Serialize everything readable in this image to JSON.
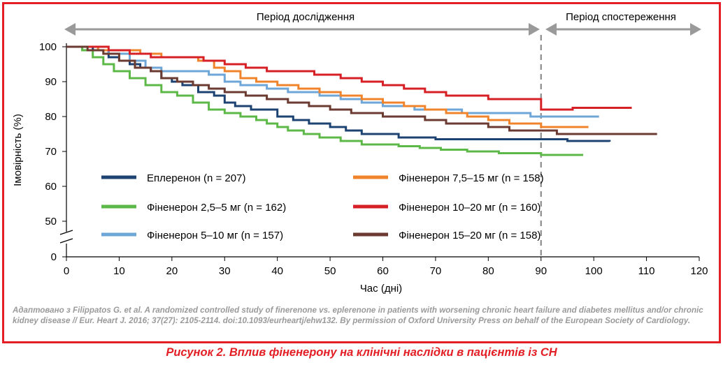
{
  "chart_data": {
    "type": "line",
    "xlabel": "Час (дні)",
    "ylabel": "Імовірність (%)",
    "x_ticks": [
      0,
      10,
      20,
      30,
      40,
      50,
      60,
      70,
      80,
      90,
      100,
      110,
      120
    ],
    "y_ticks": [
      0,
      50,
      60,
      70,
      80,
      90,
      100
    ],
    "y_tick_labels": [
      "0",
      "50",
      "60",
      "70",
      "80",
      "90",
      "100"
    ],
    "xlim": [
      0,
      120
    ],
    "ylim_upper_segment": [
      48,
      101
    ],
    "axis_break": true,
    "grid": false,
    "period_study_label": "Період дослідження",
    "period_followup_label": "Період спостереження",
    "period_divider_day": 90,
    "legend_placement": "inside-bottom, two columns",
    "series": [
      {
        "name": "Еплеренон (n = 207)",
        "color": "#1d4373",
        "points": [
          [
            0,
            100
          ],
          [
            5,
            99
          ],
          [
            8,
            97
          ],
          [
            10,
            96
          ],
          [
            12,
            95
          ],
          [
            14,
            94
          ],
          [
            16,
            93
          ],
          [
            18,
            91
          ],
          [
            20,
            90
          ],
          [
            22,
            89
          ],
          [
            25,
            87
          ],
          [
            28,
            86
          ],
          [
            30,
            84
          ],
          [
            32,
            83
          ],
          [
            35,
            82
          ],
          [
            38,
            82
          ],
          [
            40,
            80
          ],
          [
            43,
            79
          ],
          [
            46,
            78
          ],
          [
            50,
            77
          ],
          [
            53,
            76
          ],
          [
            56,
            75
          ],
          [
            60,
            75
          ],
          [
            63,
            74
          ],
          [
            70,
            73.5
          ],
          [
            80,
            73.5
          ],
          [
            90,
            73.5
          ],
          [
            95,
            73
          ],
          [
            103,
            72.8
          ]
        ]
      },
      {
        "name": "Фіненерон 2,5–5 мг (n = 162)",
        "color": "#5db947",
        "points": [
          [
            0,
            100
          ],
          [
            3,
            99
          ],
          [
            5,
            97
          ],
          [
            7,
            95
          ],
          [
            9,
            93
          ],
          [
            12,
            91
          ],
          [
            15,
            89
          ],
          [
            18,
            87
          ],
          [
            21,
            86
          ],
          [
            24,
            84
          ],
          [
            27,
            82
          ],
          [
            30,
            81
          ],
          [
            33,
            80
          ],
          [
            36,
            79
          ],
          [
            38,
            78
          ],
          [
            40,
            77
          ],
          [
            42,
            76
          ],
          [
            45,
            75
          ],
          [
            48,
            74
          ],
          [
            52,
            73
          ],
          [
            56,
            72
          ],
          [
            60,
            72
          ],
          [
            63,
            71.5
          ],
          [
            67,
            71
          ],
          [
            71,
            70.5
          ],
          [
            76,
            70
          ],
          [
            82,
            69.5
          ],
          [
            90,
            69
          ],
          [
            98,
            69
          ]
        ]
      },
      {
        "name": "Фіненерон 5–10 мг (n = 157)",
        "color": "#6fa6d8",
        "points": [
          [
            0,
            100
          ],
          [
            4,
            100
          ],
          [
            6,
            99
          ],
          [
            8,
            98
          ],
          [
            12,
            96
          ],
          [
            15,
            94
          ],
          [
            18,
            93
          ],
          [
            24,
            93
          ],
          [
            27,
            92
          ],
          [
            30,
            90
          ],
          [
            33,
            89
          ],
          [
            38,
            88
          ],
          [
            42,
            87
          ],
          [
            48,
            86
          ],
          [
            52,
            85
          ],
          [
            56,
            84
          ],
          [
            60,
            83
          ],
          [
            63,
            83
          ],
          [
            66,
            82
          ],
          [
            70,
            82
          ],
          [
            75,
            81
          ],
          [
            80,
            81
          ],
          [
            84,
            81
          ],
          [
            88,
            80
          ],
          [
            90,
            80
          ],
          [
            100,
            80
          ],
          [
            101,
            80
          ]
        ]
      },
      {
        "name": "Фіненерон 7,5–15 мг (n = 158)",
        "color": "#f0842c",
        "points": [
          [
            0,
            100
          ],
          [
            4,
            100
          ],
          [
            6,
            99
          ],
          [
            10,
            99
          ],
          [
            14,
            98
          ],
          [
            18,
            97
          ],
          [
            22,
            97
          ],
          [
            25,
            96
          ],
          [
            28,
            94
          ],
          [
            30,
            93
          ],
          [
            33,
            91
          ],
          [
            36,
            90
          ],
          [
            40,
            89
          ],
          [
            44,
            88
          ],
          [
            48,
            87
          ],
          [
            52,
            86
          ],
          [
            56,
            85
          ],
          [
            60,
            84
          ],
          [
            64,
            83
          ],
          [
            68,
            82
          ],
          [
            72,
            81
          ],
          [
            76,
            80
          ],
          [
            80,
            79
          ],
          [
            84,
            78
          ],
          [
            88,
            78
          ],
          [
            90,
            77
          ],
          [
            95,
            77
          ],
          [
            99,
            77
          ]
        ]
      },
      {
        "name": "Фіненерон 10–20 мг (n = 160)",
        "color": "#d71f26",
        "points": [
          [
            0,
            100
          ],
          [
            5,
            100
          ],
          [
            8,
            99
          ],
          [
            12,
            98
          ],
          [
            16,
            97
          ],
          [
            20,
            97
          ],
          [
            26,
            96
          ],
          [
            30,
            95
          ],
          [
            34,
            94
          ],
          [
            38,
            93
          ],
          [
            42,
            93
          ],
          [
            47,
            92
          ],
          [
            52,
            91
          ],
          [
            56,
            90
          ],
          [
            60,
            89
          ],
          [
            64,
            88
          ],
          [
            68,
            87
          ],
          [
            72,
            86
          ],
          [
            76,
            86
          ],
          [
            80,
            85
          ],
          [
            84,
            85
          ],
          [
            87,
            85
          ],
          [
            90,
            82
          ],
          [
            92,
            82
          ],
          [
            96,
            82.5
          ],
          [
            101,
            82.5
          ],
          [
            107,
            82.8
          ]
        ]
      },
      {
        "name": "Фіненерон 15–20 мг (n = 158)",
        "color": "#6b3a30",
        "points": [
          [
            0,
            100
          ],
          [
            4,
            99
          ],
          [
            7,
            98
          ],
          [
            10,
            96
          ],
          [
            13,
            94
          ],
          [
            16,
            93
          ],
          [
            18,
            91
          ],
          [
            21,
            90
          ],
          [
            24,
            89
          ],
          [
            27,
            88
          ],
          [
            30,
            87
          ],
          [
            34,
            86
          ],
          [
            38,
            85
          ],
          [
            42,
            84
          ],
          [
            46,
            83
          ],
          [
            50,
            82
          ],
          [
            54,
            81
          ],
          [
            57,
            81
          ],
          [
            60,
            80
          ],
          [
            64,
            80
          ],
          [
            68,
            79
          ],
          [
            72,
            78
          ],
          [
            76,
            78
          ],
          [
            80,
            77
          ],
          [
            84,
            76
          ],
          [
            88,
            76
          ],
          [
            90,
            76
          ],
          [
            93,
            75
          ],
          [
            100,
            75
          ],
          [
            112,
            75
          ]
        ]
      }
    ]
  },
  "source_text": "Адаптовано з Filippatos G. et al. A randomized controlled study of finerenone vs. eplerenone in patients with worsening chronic heart failure and diabetes mellitus and/or chronic kidney disease // Eur. Heart J. 2016; 37(27): 2105-2114. doi:10.1093/eurheartj/ehw132. By permission of Oxford University Press on behalf of the European Society of Cardiology.",
  "caption": "Рисунок 2. Вплив фіненерону на клінічні наслідки в пацієнтів із СН"
}
